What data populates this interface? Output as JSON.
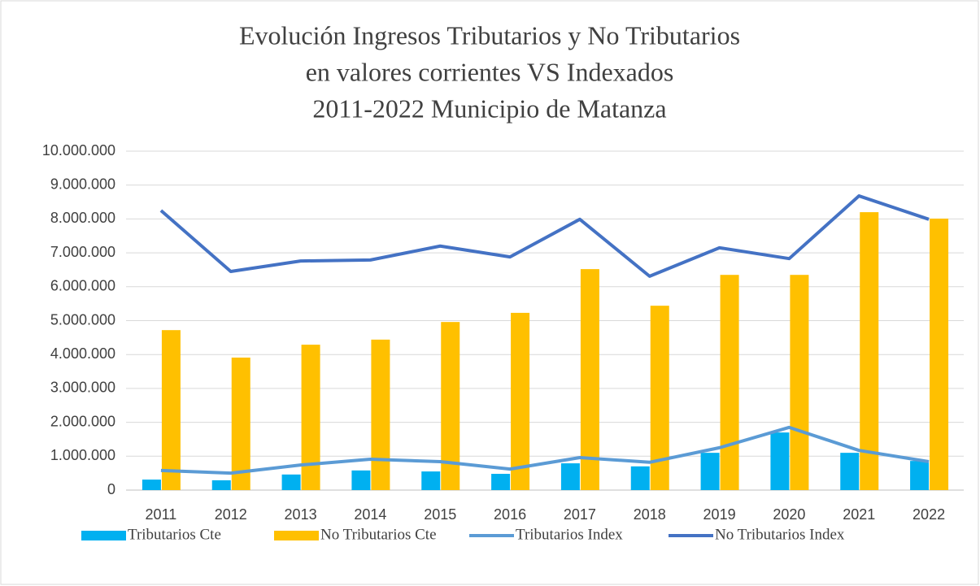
{
  "chart_data": {
    "type": "bar_line",
    "title": [
      "Evolución Ingresos Tributarios y No Tributarios",
      "en valores corrientes VS Indexados",
      "2011-2022 Municipio de Matanza"
    ],
    "categories": [
      "2011",
      "2012",
      "2013",
      "2014",
      "2015",
      "2016",
      "2017",
      "2018",
      "2019",
      "2020",
      "2021",
      "2022"
    ],
    "series": [
      {
        "name": "Tributarios Cte",
        "kind": "bar",
        "color": "#00b0f0",
        "values": [
          310000,
          290000,
          460000,
          580000,
          550000,
          480000,
          790000,
          700000,
          1100000,
          1700000,
          1100000,
          860000
        ]
      },
      {
        "name": "No Tributarios Cte",
        "kind": "bar",
        "color": "#ffc000",
        "values": [
          4720000,
          3910000,
          4290000,
          4440000,
          4960000,
          5230000,
          6520000,
          5440000,
          6350000,
          6350000,
          8200000,
          8010000
        ]
      },
      {
        "name": "Tributarios Index",
        "kind": "line",
        "color": "#5b9bd5",
        "values": [
          580000,
          500000,
          740000,
          910000,
          840000,
          620000,
          960000,
          820000,
          1250000,
          1850000,
          1170000,
          840000
        ]
      },
      {
        "name": "No Tributarios Index",
        "kind": "line",
        "color": "#4472c4",
        "values": [
          8250000,
          6450000,
          6760000,
          6790000,
          7200000,
          6880000,
          7990000,
          6310000,
          7150000,
          6830000,
          8680000,
          7990000
        ]
      }
    ],
    "ylim": [
      0,
      10000000
    ],
    "yticks": [
      0,
      {
        "value": 1000000,
        "label": "1.000.000"
      },
      {
        "value": 2000000,
        "label": "2.000.000"
      },
      {
        "value": 3000000,
        "label": "3.000.000"
      },
      {
        "value": 4000000,
        "label": "4.000.000"
      },
      {
        "value": 5000000,
        "label": "5.000.000"
      },
      {
        "value": 6000000,
        "label": "6.000.000"
      },
      {
        "value": 7000000,
        "label": "7.000.000"
      },
      {
        "value": 8000000,
        "label": "8.000.000"
      },
      {
        "value": 9000000,
        "label": "9.000.000"
      },
      {
        "value": 10000000,
        "label": "10.000.000"
      }
    ],
    "grid": true,
    "legend": "bottom"
  }
}
